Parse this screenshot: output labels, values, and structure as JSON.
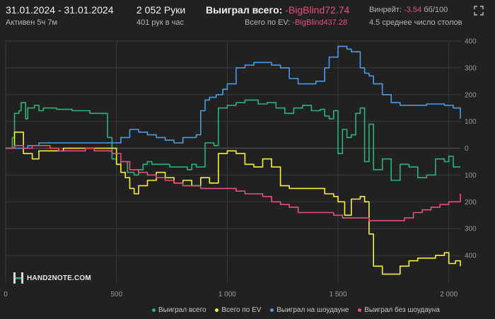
{
  "header": {
    "period": "31.01.2024 - 31.01.2024",
    "active": "Активен 5ч 7м",
    "hands": "2 052 Руки",
    "hands_per_hour": "401 рук в час",
    "won_label": "Выиграл всего:",
    "won_value": "-BigBlind72.74",
    "ev_label": "Всего по EV:",
    "ev_value": "-BigBlind437.28",
    "winrate_label": "Винрейт:",
    "winrate_value": "-3.54",
    "winrate_unit": "бб/100",
    "tables": "4.5 среднее число столов"
  },
  "logo": {
    "text": "HAND2NOTE.COM"
  },
  "colors": {
    "background": "#212121",
    "grid": "#3a3a3a",
    "won": "#2db27a",
    "ev": "#f5f03c",
    "showdown": "#4a9ae8",
    "non_showdown": "#e8507a"
  },
  "chart_data": {
    "type": "line",
    "title": "",
    "xlabel": "",
    "ylabel": "",
    "xlim": [
      0,
      2052
    ],
    "ylim": [
      -500,
      400
    ],
    "x_ticks": [
      0,
      500,
      1000,
      1500,
      2000
    ],
    "x_tick_labels": [
      "0",
      "500",
      "1 000",
      "1 500",
      "2 000"
    ],
    "y_ticks": [
      400,
      300,
      200,
      100,
      0,
      -100,
      -200,
      -300,
      -400
    ],
    "y_tick_labels": [
      "400",
      "300",
      "200",
      "100",
      "0",
      "100",
      "200",
      "300",
      "400"
    ],
    "grid": true,
    "legend": "bottom",
    "series": [
      {
        "name": "Выиграл всего",
        "color": "#2db27a",
        "x": [
          0,
          30,
          40,
          60,
          70,
          90,
          100,
          130,
          150,
          170,
          200,
          230,
          260,
          300,
          330,
          350,
          380,
          420,
          460,
          480,
          500,
          520,
          550,
          580,
          600,
          620,
          640,
          660,
          700,
          740,
          780,
          820,
          840,
          860,
          900,
          940,
          960,
          1000,
          1040,
          1080,
          1100,
          1140,
          1180,
          1220,
          1260,
          1300,
          1340,
          1380,
          1420,
          1440,
          1460,
          1480,
          1500,
          1520,
          1540,
          1560,
          1580,
          1600,
          1620,
          1640,
          1660,
          1700,
          1740,
          1780,
          1820,
          1860,
          1900,
          1940,
          1980,
          2000,
          2020,
          2052
        ],
        "y": [
          0,
          40,
          130,
          140,
          170,
          110,
          150,
          160,
          140,
          150,
          150,
          145,
          145,
          140,
          140,
          140,
          130,
          130,
          40,
          -40,
          -60,
          -50,
          -90,
          -100,
          -80,
          -60,
          -50,
          -60,
          -60,
          -70,
          -70,
          -80,
          -60,
          -70,
          20,
          10,
          150,
          160,
          170,
          180,
          180,
          165,
          170,
          150,
          130,
          150,
          160,
          140,
          145,
          120,
          110,
          140,
          -20,
          70,
          40,
          50,
          130,
          150,
          -50,
          90,
          -80,
          -40,
          -120,
          -60,
          -70,
          -110,
          -100,
          -40,
          -50,
          -30,
          -70,
          -70
        ]
      },
      {
        "name": "Всего по EV",
        "color": "#f5f03c",
        "x": [
          0,
          40,
          80,
          120,
          150,
          200,
          260,
          320,
          380,
          440,
          470,
          500,
          520,
          540,
          560,
          580,
          600,
          640,
          680,
          720,
          760,
          800,
          840,
          880,
          920,
          960,
          1000,
          1040,
          1080,
          1120,
          1160,
          1200,
          1240,
          1280,
          1320,
          1360,
          1400,
          1440,
          1480,
          1500,
          1530,
          1560,
          1600,
          1620,
          1640,
          1660,
          1700,
          1740,
          1780,
          1820,
          1860,
          1900,
          1940,
          1980,
          2000,
          2030,
          2052
        ],
        "y": [
          0,
          60,
          -20,
          -40,
          -10,
          -10,
          0,
          0,
          0,
          0,
          0,
          -60,
          -90,
          -110,
          -150,
          -170,
          -140,
          -120,
          -90,
          -110,
          -130,
          -120,
          -140,
          -110,
          -130,
          -20,
          -10,
          -20,
          -60,
          -70,
          -40,
          -70,
          -140,
          -150,
          -150,
          -150,
          -150,
          -170,
          -180,
          -200,
          -250,
          -190,
          -180,
          -200,
          -320,
          -440,
          -470,
          -470,
          -440,
          -420,
          -410,
          -410,
          -400,
          -390,
          -430,
          -420,
          -440
        ]
      },
      {
        "name": "Выиграл на шоудауне",
        "color": "#4a9ae8",
        "x": [
          0,
          60,
          100,
          150,
          200,
          250,
          300,
          350,
          400,
          460,
          480,
          520,
          560,
          600,
          640,
          680,
          720,
          760,
          800,
          820,
          860,
          880,
          900,
          920,
          950,
          980,
          1000,
          1040,
          1080,
          1120,
          1160,
          1200,
          1240,
          1280,
          1320,
          1360,
          1400,
          1440,
          1460,
          1480,
          1500,
          1540,
          1560,
          1600,
          1620,
          1640,
          1660,
          1700,
          1740,
          1780,
          1820,
          1860,
          1900,
          1940,
          1980,
          2020,
          2052
        ],
        "y": [
          0,
          0,
          10,
          20,
          20,
          20,
          20,
          20,
          20,
          20,
          20,
          40,
          70,
          60,
          50,
          40,
          30,
          20,
          40,
          40,
          50,
          140,
          180,
          190,
          200,
          220,
          240,
          300,
          310,
          320,
          320,
          310,
          300,
          260,
          240,
          240,
          250,
          300,
          340,
          340,
          380,
          370,
          360,
          300,
          280,
          270,
          240,
          200,
          170,
          160,
          160,
          160,
          165,
          165,
          160,
          150,
          110
        ]
      },
      {
        "name": "Выиграл без шоудауна",
        "color": "#e8507a",
        "x": [
          0,
          40,
          80,
          120,
          160,
          200,
          240,
          280,
          320,
          360,
          400,
          440,
          480,
          520,
          560,
          600,
          640,
          680,
          720,
          760,
          800,
          840,
          880,
          920,
          960,
          1000,
          1040,
          1080,
          1120,
          1160,
          1200,
          1240,
          1280,
          1320,
          1360,
          1400,
          1440,
          1480,
          1520,
          1560,
          1600,
          1640,
          1680,
          1720,
          1760,
          1800,
          1840,
          1880,
          1920,
          1960,
          2000,
          2052
        ],
        "y": [
          0,
          10,
          0,
          10,
          10,
          0,
          -10,
          -10,
          -10,
          0,
          -10,
          -10,
          -20,
          -50,
          -80,
          -90,
          -100,
          -110,
          -120,
          -130,
          -140,
          -140,
          -150,
          -150,
          -150,
          -150,
          -160,
          -170,
          -170,
          -180,
          -200,
          -210,
          -220,
          -240,
          -240,
          -240,
          -240,
          -250,
          -260,
          -260,
          -260,
          -270,
          -270,
          -270,
          -270,
          -260,
          -240,
          -230,
          -220,
          -210,
          -200,
          -170
        ]
      }
    ]
  }
}
